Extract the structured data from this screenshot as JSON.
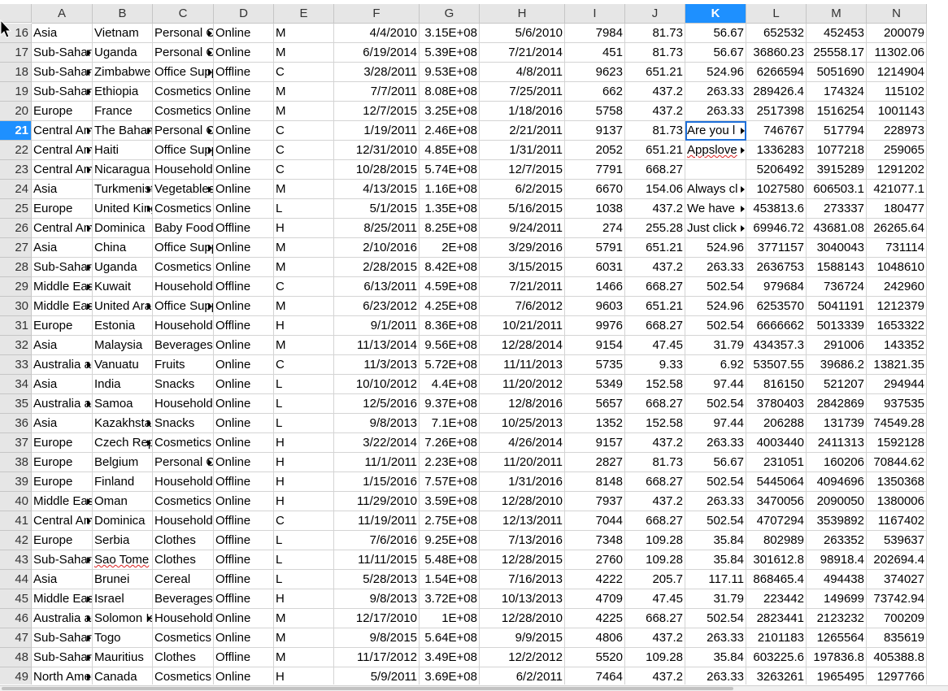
{
  "columns": [
    "A",
    "B",
    "C",
    "D",
    "E",
    "F",
    "G",
    "H",
    "I",
    "J",
    "K",
    "L",
    "M",
    "N"
  ],
  "selected_column": "K",
  "selected_row": "21",
  "rows": [
    {
      "n": "16",
      "cells": [
        "Asia",
        "Vietnam",
        "Personal Care",
        "Online",
        "M",
        "4/4/2010",
        "3.15E+08",
        "5/6/2010",
        "7984",
        "81.73",
        "56.67",
        "652532",
        "452453",
        "200079"
      ]
    },
    {
      "n": "17",
      "cells": [
        "Sub-Saharan Africa",
        "Uganda",
        "Personal Care",
        "Online",
        "M",
        "6/19/2014",
        "5.39E+08",
        "7/21/2014",
        "451",
        "81.73",
        "56.67",
        "36860.23",
        "25558.17",
        "11302.06"
      ]
    },
    {
      "n": "18",
      "cells": [
        "Sub-Saharan Africa",
        "Zimbabwe",
        "Office Supplies",
        "Offline",
        "C",
        "3/28/2011",
        "9.53E+08",
        "4/8/2011",
        "9623",
        "651.21",
        "524.96",
        "6266594",
        "5051690",
        "1214904"
      ]
    },
    {
      "n": "19",
      "cells": [
        "Sub-Saharan Africa",
        "Ethiopia",
        "Cosmetics",
        "Online",
        "M",
        "7/7/2011",
        "8.08E+08",
        "7/25/2011",
        "662",
        "437.2",
        "263.33",
        "289426.4",
        "174324",
        "115102"
      ]
    },
    {
      "n": "20",
      "cells": [
        "Europe",
        "France",
        "Cosmetics",
        "Online",
        "M",
        "12/7/2015",
        "3.25E+08",
        "1/18/2016",
        "5758",
        "437.2",
        "263.33",
        "2517398",
        "1516254",
        "1001143"
      ]
    },
    {
      "n": "21",
      "cells": [
        "Central America",
        "The Bahamas",
        "Personal Care",
        "Online",
        "C",
        "1/19/2011",
        "2.46E+08",
        "2/21/2011",
        "9137",
        "81.73",
        "Are you l",
        "746767",
        "517794",
        "228973"
      ]
    },
    {
      "n": "22",
      "cells": [
        "Central America",
        "Haiti",
        "Office Supplies",
        "Online",
        "C",
        "12/31/2010",
        "4.85E+08",
        "1/31/2011",
        "2052",
        "651.21",
        "Appslove",
        "1336283",
        "1077218",
        "259065"
      ]
    },
    {
      "n": "23",
      "cells": [
        "Central America",
        "Nicaragua",
        "Household",
        "Online",
        "C",
        "10/28/2015",
        "5.74E+08",
        "12/7/2015",
        "7791",
        "668.27",
        "",
        "5206492",
        "3915289",
        "1291202"
      ]
    },
    {
      "n": "24",
      "cells": [
        "Asia",
        "Turkmenistan",
        "Vegetables",
        "Online",
        "M",
        "4/13/2015",
        "1.16E+08",
        "6/2/2015",
        "6670",
        "154.06",
        "Always cl",
        "1027580",
        "606503.1",
        "421077.1"
      ]
    },
    {
      "n": "25",
      "cells": [
        "Europe",
        "United Kingdom",
        "Cosmetics",
        "Online",
        "L",
        "5/1/2015",
        "1.35E+08",
        "5/16/2015",
        "1038",
        "437.2",
        "We have",
        "453813.6",
        "273337",
        "180477"
      ]
    },
    {
      "n": "26",
      "cells": [
        "Central America",
        "Dominica",
        "Baby Food",
        "Offline",
        "H",
        "8/25/2011",
        "8.25E+08",
        "9/24/2011",
        "274",
        "255.28",
        "Just click",
        "69946.72",
        "43681.08",
        "26265.64"
      ]
    },
    {
      "n": "27",
      "cells": [
        "Asia",
        "China",
        "Office Supplies",
        "Online",
        "M",
        "2/10/2016",
        "2E+08",
        "3/29/2016",
        "5791",
        "651.21",
        "524.96",
        "3771157",
        "3040043",
        "731114"
      ]
    },
    {
      "n": "28",
      "cells": [
        "Sub-Saharan Africa",
        "Uganda",
        "Cosmetics",
        "Online",
        "M",
        "2/28/2015",
        "8.42E+08",
        "3/15/2015",
        "6031",
        "437.2",
        "263.33",
        "2636753",
        "1588143",
        "1048610"
      ]
    },
    {
      "n": "29",
      "cells": [
        "Middle East",
        "Kuwait",
        "Household",
        "Offline",
        "C",
        "6/13/2011",
        "4.59E+08",
        "7/21/2011",
        "1466",
        "668.27",
        "502.54",
        "979684",
        "736724",
        "242960"
      ]
    },
    {
      "n": "30",
      "cells": [
        "Middle East",
        "United Arab Emirates",
        "Office Supplies",
        "Online",
        "M",
        "6/23/2012",
        "4.25E+08",
        "7/6/2012",
        "9603",
        "651.21",
        "524.96",
        "6253570",
        "5041191",
        "1212379"
      ]
    },
    {
      "n": "31",
      "cells": [
        "Europe",
        "Estonia",
        "Household",
        "Offline",
        "H",
        "9/1/2011",
        "8.36E+08",
        "10/21/2011",
        "9976",
        "668.27",
        "502.54",
        "6666662",
        "5013339",
        "1653322"
      ]
    },
    {
      "n": "32",
      "cells": [
        "Asia",
        "Malaysia",
        "Beverages",
        "Online",
        "M",
        "11/13/2014",
        "9.56E+08",
        "12/28/2014",
        "9154",
        "47.45",
        "31.79",
        "434357.3",
        "291006",
        "143352"
      ]
    },
    {
      "n": "33",
      "cells": [
        "Australia and Oceania",
        "Vanuatu",
        "Fruits",
        "Online",
        "C",
        "11/3/2013",
        "5.72E+08",
        "11/11/2013",
        "5735",
        "9.33",
        "6.92",
        "53507.55",
        "39686.2",
        "13821.35"
      ]
    },
    {
      "n": "34",
      "cells": [
        "Asia",
        "India",
        "Snacks",
        "Online",
        "L",
        "10/10/2012",
        "4.4E+08",
        "11/20/2012",
        "5349",
        "152.58",
        "97.44",
        "816150",
        "521207",
        "294944"
      ]
    },
    {
      "n": "35",
      "cells": [
        "Australia and Oceania",
        "Samoa",
        "Household",
        "Online",
        "L",
        "12/5/2016",
        "9.37E+08",
        "12/8/2016",
        "5657",
        "668.27",
        "502.54",
        "3780403",
        "2842869",
        "937535"
      ]
    },
    {
      "n": "36",
      "cells": [
        "Asia",
        "Kazakhstan",
        "Snacks",
        "Online",
        "L",
        "9/8/2013",
        "7.1E+08",
        "10/25/2013",
        "1352",
        "152.58",
        "97.44",
        "206288",
        "131739",
        "74549.28"
      ]
    },
    {
      "n": "37",
      "cells": [
        "Europe",
        "Czech Republic",
        "Cosmetics",
        "Online",
        "H",
        "3/22/2014",
        "7.26E+08",
        "4/26/2014",
        "9157",
        "437.2",
        "263.33",
        "4003440",
        "2411313",
        "1592128"
      ]
    },
    {
      "n": "38",
      "cells": [
        "Europe",
        "Belgium",
        "Personal Care",
        "Online",
        "H",
        "11/1/2011",
        "2.23E+08",
        "11/20/2011",
        "2827",
        "81.73",
        "56.67",
        "231051",
        "160206",
        "70844.62"
      ]
    },
    {
      "n": "39",
      "cells": [
        "Europe",
        "Finland",
        "Household",
        "Offline",
        "H",
        "1/15/2016",
        "7.57E+08",
        "1/31/2016",
        "8148",
        "668.27",
        "502.54",
        "5445064",
        "4094696",
        "1350368"
      ]
    },
    {
      "n": "40",
      "cells": [
        "Middle East",
        "Oman",
        "Cosmetics",
        "Online",
        "H",
        "11/29/2010",
        "3.59E+08",
        "12/28/2010",
        "7937",
        "437.2",
        "263.33",
        "3470056",
        "2090050",
        "1380006"
      ]
    },
    {
      "n": "41",
      "cells": [
        "Central America",
        "Dominica",
        "Household",
        "Offline",
        "C",
        "11/19/2011",
        "2.75E+08",
        "12/13/2011",
        "7044",
        "668.27",
        "502.54",
        "4707294",
        "3539892",
        "1167402"
      ]
    },
    {
      "n": "42",
      "cells": [
        "Europe",
        "Serbia",
        "Clothes",
        "Offline",
        "L",
        "7/6/2016",
        "9.25E+08",
        "7/13/2016",
        "7348",
        "109.28",
        "35.84",
        "802989",
        "263352",
        "539637"
      ]
    },
    {
      "n": "43",
      "cells": [
        "Sub-Saharan Africa",
        "Sao Tome",
        "Clothes",
        "Offline",
        "L",
        "11/11/2015",
        "5.48E+08",
        "12/28/2015",
        "2760",
        "109.28",
        "35.84",
        "301612.8",
        "98918.4",
        "202694.4"
      ]
    },
    {
      "n": "44",
      "cells": [
        "Asia",
        "Brunei",
        "Cereal",
        "Offline",
        "L",
        "5/28/2013",
        "1.54E+08",
        "7/16/2013",
        "4222",
        "205.7",
        "117.11",
        "868465.4",
        "494438",
        "374027"
      ]
    },
    {
      "n": "45",
      "cells": [
        "Middle East",
        "Israel",
        "Beverages",
        "Offline",
        "H",
        "9/8/2013",
        "3.72E+08",
        "10/13/2013",
        "4709",
        "47.45",
        "31.79",
        "223442",
        "149699",
        "73742.94"
      ]
    },
    {
      "n": "46",
      "cells": [
        "Australia and Oceania",
        "Solomon Islands",
        "Household",
        "Online",
        "M",
        "12/17/2010",
        "1E+08",
        "12/28/2010",
        "4225",
        "668.27",
        "502.54",
        "2823441",
        "2123232",
        "700209"
      ]
    },
    {
      "n": "47",
      "cells": [
        "Sub-Saharan Africa",
        "Togo",
        "Cosmetics",
        "Online",
        "M",
        "9/8/2015",
        "5.64E+08",
        "9/9/2015",
        "4806",
        "437.2",
        "263.33",
        "2101183",
        "1265564",
        "835619"
      ]
    },
    {
      "n": "48",
      "cells": [
        "Sub-Saharan Africa",
        "Mauritius",
        "Clothes",
        "Offline",
        "M",
        "11/17/2012",
        "3.49E+08",
        "12/2/2012",
        "5520",
        "109.28",
        "35.84",
        "603225.6",
        "197836.8",
        "405388.8"
      ]
    },
    {
      "n": "49",
      "cells": [
        "North America",
        "Canada",
        "Cosmetics",
        "Online",
        "H",
        "5/9/2011",
        "3.69E+08",
        "6/2/2011",
        "7464",
        "437.2",
        "263.33",
        "3263261",
        "1965495",
        "1297766"
      ]
    }
  ]
}
